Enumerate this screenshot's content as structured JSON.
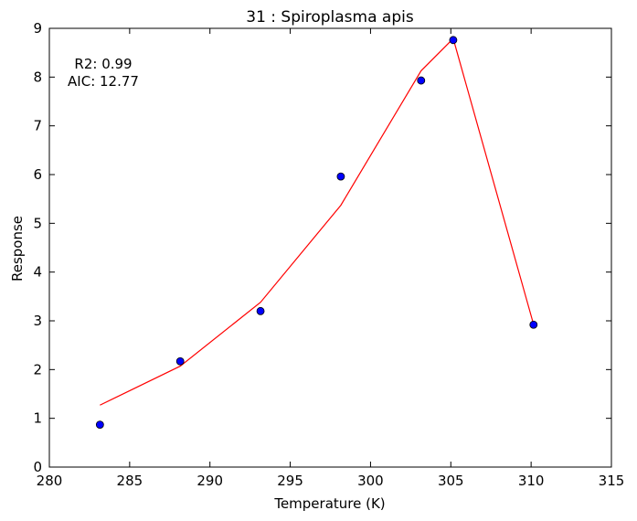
{
  "chart_data": {
    "type": "scatter",
    "title": "31 : Spiroplasma apis",
    "xlabel": "Temperature (K)",
    "ylabel": "Response",
    "xlim": [
      280,
      315
    ],
    "ylim": [
      0,
      9
    ],
    "xticks": [
      280,
      285,
      290,
      295,
      300,
      305,
      310,
      315
    ],
    "yticks": [
      0,
      1,
      2,
      3,
      4,
      5,
      6,
      7,
      8,
      9
    ],
    "grid": false,
    "annotation": {
      "r2_text": "R2: 0.99",
      "aic_text": "AIC: 12.77"
    },
    "points": {
      "x": [
        283.15,
        288.15,
        293.15,
        298.15,
        303.15,
        305.15,
        310.15
      ],
      "y": [
        0.87,
        2.17,
        3.2,
        5.96,
        7.93,
        8.76,
        2.92
      ],
      "color": "#0000ff"
    },
    "fit": {
      "x": [
        283.15,
        288.15,
        293.15,
        298.15,
        303.15,
        305.15,
        310.15
      ],
      "y": [
        1.27,
        2.07,
        3.38,
        5.37,
        8.13,
        8.79,
        2.93
      ],
      "color": "#ff0000"
    }
  }
}
